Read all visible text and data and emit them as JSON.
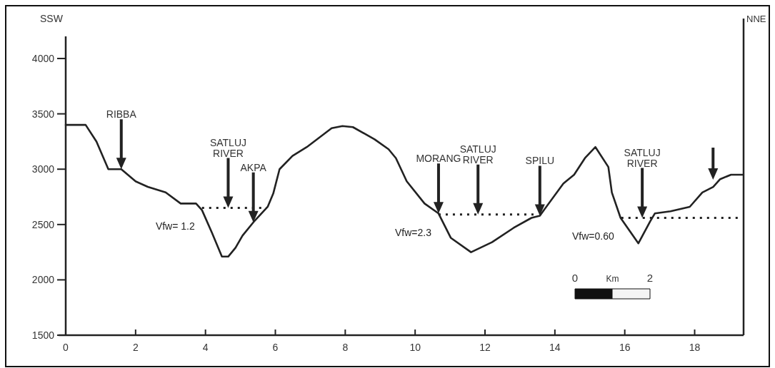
{
  "chart_data": {
    "type": "line",
    "ylabel": "SSW",
    "y2label": "NNE",
    "x": [
      0,
      0.57,
      0.88,
      1.22,
      1.59,
      2.0,
      2.35,
      2.86,
      3.29,
      3.73,
      3.9,
      4.18,
      4.47,
      4.65,
      4.86,
      5.06,
      5.37,
      5.78,
      5.94,
      6.12,
      6.49,
      6.9,
      7.61,
      7.92,
      8.22,
      8.84,
      9.24,
      9.45,
      9.76,
      10.27,
      10.67,
      11.02,
      11.6,
      12.2,
      12.82,
      13.33,
      13.57,
      14.24,
      14.55,
      14.86,
      15.16,
      15.53,
      15.63,
      15.88,
      16.39,
      16.73,
      16.86,
      17.31,
      17.86,
      18.22,
      18.53,
      18.73,
      19.04,
      19.37
    ],
    "series": [
      {
        "color": "#222222",
        "values": [
          3400,
          3400,
          3250,
          3000,
          3000,
          2890,
          2840,
          2790,
          2690,
          2690,
          2630,
          2430,
          2210,
          2210,
          2290,
          2400,
          2520,
          2660,
          2780,
          3000,
          3120,
          3200,
          3370,
          3390,
          3380,
          3270,
          3180,
          3100,
          2890,
          2690,
          2600,
          2380,
          2250,
          2340,
          2470,
          2560,
          2580,
          2870,
          2950,
          3100,
          3200,
          3020,
          2790,
          2560,
          2330,
          2530,
          2600,
          2620,
          2660,
          2790,
          2840,
          2910,
          2950,
          2950
        ]
      },
      {
        "type": "line",
        "name": "Vfw= 1.2",
        "color": "#222222",
        "line_style": "dotted",
        "x": [
          3.9,
          5.75
        ],
        "values": [
          2650,
          2650
        ]
      },
      {
        "type": "line",
        "name": "Vfw=2.3",
        "color": "#222222",
        "line_style": "dotted",
        "x": [
          10.67,
          13.5
        ],
        "values": [
          2590,
          2590
        ]
      },
      {
        "type": "line",
        "name": "Vfw=0.60",
        "color": "#222222",
        "line_style": "dotted",
        "x": [
          15.9,
          19.37
        ],
        "values": [
          2560,
          2560
        ]
      }
    ],
    "xlim": [
      0,
      19.4
    ],
    "xticks": [
      0,
      2,
      4,
      6,
      8,
      10,
      12,
      14,
      16,
      18
    ],
    "ylim": [
      1500,
      4200
    ],
    "yticks": [
      1500,
      2000,
      2500,
      3000,
      3500,
      4000
    ],
    "grid": false,
    "legend": false,
    "marker": "none",
    "line_style": "solid",
    "annotations": [
      "RIBBA",
      "SATLUJ\nRIVER",
      "AKPA",
      "MORANG",
      "SATLUJ\nRIVER",
      "SPILU",
      "SATLUJ\nRIVER",
      "0",
      "Km",
      "2"
    ]
  }
}
